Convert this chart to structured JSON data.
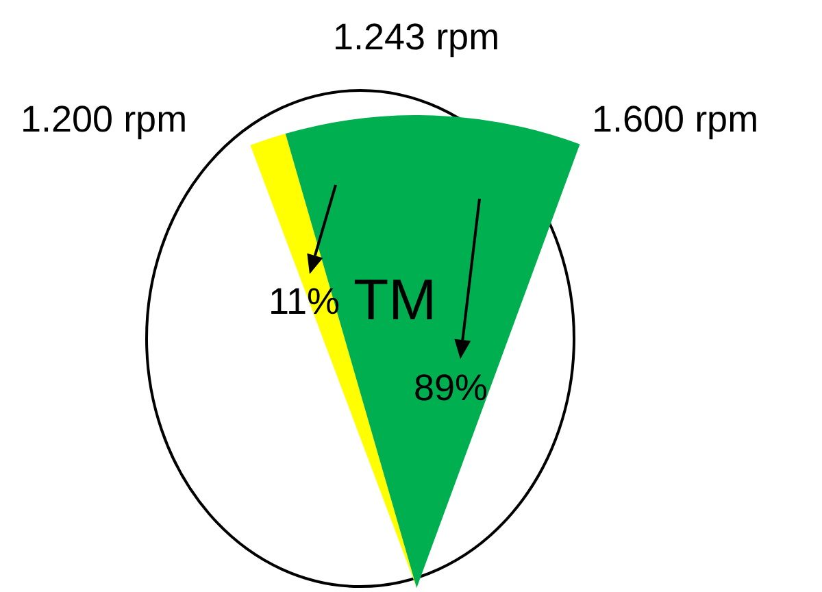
{
  "chart_data": {
    "type": "pie",
    "categories": [
      null,
      null
    ],
    "values": [
      11,
      89
    ],
    "colors": [
      "#ffff00",
      "#00b050"
    ],
    "value_labels": [
      "11%",
      "89%"
    ],
    "annotations": [
      "1.200 rpm",
      "1.243 rpm",
      "1.600 rpm",
      "TM"
    ]
  }
}
